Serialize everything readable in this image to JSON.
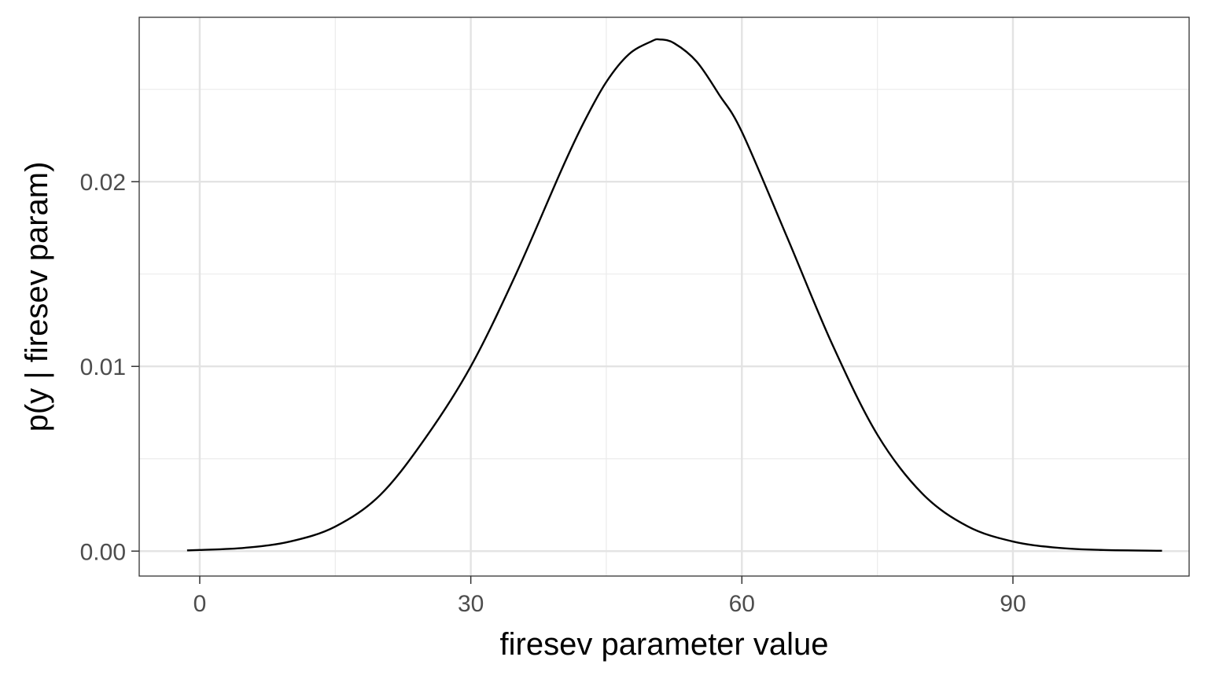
{
  "chart_data": {
    "type": "line",
    "title": "",
    "xlabel": "firesev parameter value",
    "ylabel": "p(y | firesev param)",
    "xlim": [
      -6.7,
      109.5
    ],
    "ylim": [
      -0.00135,
      0.0289
    ],
    "x_ticks": [
      0,
      30,
      60,
      90
    ],
    "x_tick_labels": [
      "0",
      "30",
      "60",
      "90"
    ],
    "x_minor_ticks": [
      15,
      45,
      75
    ],
    "y_ticks": [
      0,
      0.01,
      0.02
    ],
    "y_tick_labels": [
      "0.00",
      "0.01",
      "0.02"
    ],
    "y_minor_ticks": [
      0.005,
      0.015,
      0.025
    ],
    "grid": true,
    "legend": "none",
    "series": [
      {
        "color": "#000000",
        "x": [
          -1.4,
          0,
          5,
          10,
          15,
          20,
          25,
          30,
          35,
          40,
          42.5,
          45,
          47.5,
          50,
          50.9,
          52.5,
          55,
          57.5,
          60,
          65,
          70,
          75,
          80,
          85,
          90,
          95,
          100,
          106.5
        ],
        "y": [
          4e-05,
          6e-05,
          0.00018,
          0.00052,
          0.00133,
          0.00305,
          0.00614,
          0.01,
          0.015,
          0.0206,
          0.0232,
          0.0254,
          0.0269,
          0.0276,
          0.0277,
          0.0275,
          0.0265,
          0.0247,
          0.0227,
          0.017,
          0.0112,
          0.0063,
          0.0031,
          0.00134,
          0.00052,
          0.00018,
          6e-05,
          2e-05
        ]
      }
    ]
  }
}
